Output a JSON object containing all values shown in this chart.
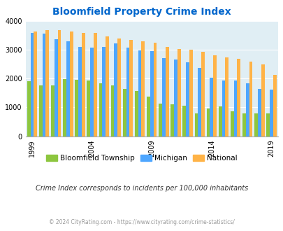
{
  "title": "Bloomfield Property Crime Index",
  "title_color": "#0066cc",
  "subtitle": "Crime Index corresponds to incidents per 100,000 inhabitants",
  "footer": "© 2024 CityRating.com - https://www.cityrating.com/crime-statistics/",
  "years": [
    1999,
    2000,
    2001,
    2002,
    2003,
    2004,
    2005,
    2006,
    2007,
    2008,
    2009,
    2010,
    2011,
    2012,
    2013,
    2014,
    2015,
    2016,
    2017,
    2018,
    2019
  ],
  "bloomfield": [
    1900,
    1760,
    1760,
    1980,
    1960,
    1930,
    1830,
    1760,
    1650,
    1570,
    1380,
    1130,
    1100,
    1050,
    790,
    970,
    1030,
    860,
    790,
    790,
    790
  ],
  "michigan": [
    3570,
    3560,
    3360,
    3290,
    3090,
    3080,
    3100,
    3220,
    3060,
    2980,
    2960,
    2720,
    2650,
    2560,
    2360,
    2040,
    1930,
    1940,
    1830,
    1650,
    1610
  ],
  "national": [
    3640,
    3680,
    3680,
    3620,
    3570,
    3570,
    3460,
    3390,
    3350,
    3290,
    3250,
    3090,
    3020,
    2990,
    2920,
    2800,
    2740,
    2690,
    2590,
    2500,
    2120
  ],
  "bloomfield_color": "#8dc63f",
  "michigan_color": "#4da6ff",
  "national_color": "#ffb347",
  "bg_color": "#e0eef4",
  "ylim": [
    0,
    4000
  ],
  "yticks": [
    0,
    1000,
    2000,
    3000,
    4000
  ],
  "xtick_labels": [
    "1999",
    "2004",
    "2009",
    "2014",
    "2019"
  ],
  "xtick_positions": [
    0,
    5,
    10,
    15,
    20
  ],
  "legend_labels": [
    "Bloomfield Township",
    "Michigan",
    "National"
  ],
  "legend_colors": [
    "#8dc63f",
    "#4da6ff",
    "#ffb347"
  ]
}
